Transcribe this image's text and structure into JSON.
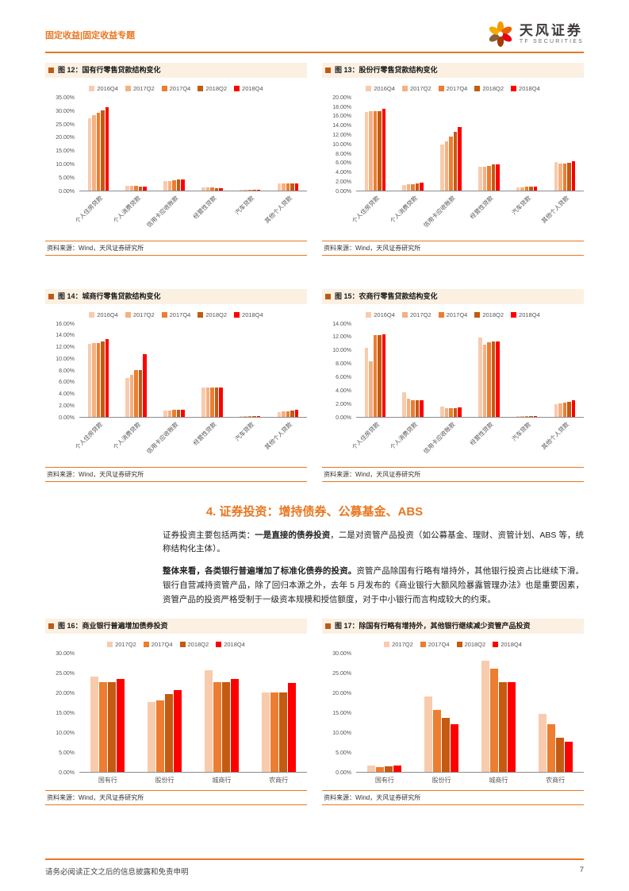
{
  "header": {
    "category": "固定收益|固定收益专题",
    "brand_name": "天风证券",
    "brand_sub": "TF SECURITIES"
  },
  "section": {
    "heading": "4. 证券投资：增持债券、公募基金、ABS",
    "paragraphs": [
      [
        {
          "t": "证券投资主要包括两类：",
          "b": false
        },
        {
          "t": "一是直接的债券投资",
          "b": true
        },
        {
          "t": "，二是对资管产品投资（如公募基金、理财、资管计划、ABS 等，统称结构化主体）。",
          "b": false
        }
      ],
      [
        {
          "t": "整体来看，各类银行普遍增加了标准化债券的投资。",
          "b": true
        },
        {
          "t": "资管产品除国有行略有增持外，其他银行投资占比继续下滑。银行自营减持资管产品，除了回归本源之外，去年 5 月发布的《商业银行大额风险暴露管理办法》也是重要因素，资管产品的投资严格受制于一级资本规模和授信额度，对于中小银行而言构成较大的约束。",
          "b": false
        }
      ]
    ]
  },
  "footer": {
    "disclaimer": "请务必阅读正文之后的信息披露和免责申明",
    "page_number": "7"
  },
  "colors": {
    "accent": "#E87722",
    "series5": [
      "#F8CBAD",
      "#F4B183",
      "#ED7D31",
      "#C55A11",
      "#FF0000"
    ],
    "series4": [
      "#F8CBAD",
      "#ED7D31",
      "#C55A11",
      "#FF0000"
    ]
  },
  "chart_data": [
    {
      "type": "bar",
      "title": "图 12：国有行零售贷款结构变化",
      "source": "资料来源：Wind，天风证券研究所",
      "ylim": [
        0,
        35
      ],
      "ystep": 5,
      "categories": [
        "个人住房贷款",
        "个人消费贷款",
        "信用卡应收账款",
        "经营性贷款",
        "汽车贷款",
        "其他个人贷款"
      ],
      "series": [
        {
          "name": "2016Q4",
          "values": [
            27.0,
            1.6,
            3.4,
            1.2,
            0.1,
            2.6
          ]
        },
        {
          "name": "2017Q2",
          "values": [
            28.0,
            1.6,
            3.6,
            1.1,
            0.1,
            2.6
          ]
        },
        {
          "name": "2017Q4",
          "values": [
            29.0,
            1.6,
            3.8,
            1.0,
            0.1,
            2.5
          ]
        },
        {
          "name": "2018Q2",
          "values": [
            30.0,
            1.5,
            4.0,
            0.9,
            0.1,
            2.5
          ]
        },
        {
          "name": "2018Q4",
          "values": [
            31.0,
            1.4,
            4.1,
            0.9,
            0.1,
            2.5
          ]
        }
      ]
    },
    {
      "type": "bar",
      "title": "图 13：股份行零售贷款结构变化",
      "source": "资料来源：Wind，天风证券研究所",
      "ylim": [
        0,
        20
      ],
      "ystep": 2,
      "categories": [
        "个人住房贷款",
        "个人消费贷款",
        "信用卡应收账款",
        "经营性贷款",
        "汽车贷款",
        "其他个人贷款"
      ],
      "series": [
        {
          "name": "2016Q4",
          "values": [
            16.8,
            1.2,
            9.8,
            5.0,
            0.7,
            6.0
          ]
        },
        {
          "name": "2017Q2",
          "values": [
            17.0,
            1.3,
            10.5,
            5.0,
            0.7,
            5.8
          ]
        },
        {
          "name": "2017Q4",
          "values": [
            17.0,
            1.4,
            11.5,
            5.2,
            0.8,
            5.8
          ]
        },
        {
          "name": "2018Q2",
          "values": [
            17.0,
            1.5,
            12.5,
            5.5,
            0.8,
            5.9
          ]
        },
        {
          "name": "2018Q4",
          "values": [
            17.5,
            1.6,
            13.5,
            5.6,
            0.8,
            6.3
          ]
        }
      ]
    },
    {
      "type": "bar",
      "title": "图 14：城商行零售贷款结构变化",
      "source": "资料来源：Wind，天风证券研究所",
      "ylim": [
        0,
        16
      ],
      "ystep": 2,
      "categories": [
        "个人住房贷款",
        "个人消费贷款",
        "信用卡应收账款",
        "经营性贷款",
        "汽车贷款",
        "其他个人贷款"
      ],
      "series": [
        {
          "name": "2016Q4",
          "values": [
            12.4,
            6.6,
            1.0,
            5.0,
            0.1,
            0.8
          ]
        },
        {
          "name": "2017Q2",
          "values": [
            12.5,
            7.1,
            1.0,
            5.0,
            0.1,
            0.9
          ]
        },
        {
          "name": "2017Q4",
          "values": [
            12.6,
            7.9,
            1.1,
            5.0,
            0.1,
            0.9
          ]
        },
        {
          "name": "2018Q2",
          "values": [
            12.8,
            8.0,
            1.1,
            5.0,
            0.1,
            1.0
          ]
        },
        {
          "name": "2018Q4",
          "values": [
            13.3,
            10.7,
            1.2,
            5.0,
            0.1,
            1.2
          ]
        }
      ]
    },
    {
      "type": "bar",
      "title": "图 15：农商行零售贷款结构变化",
      "source": "资料来源：Wind，天风证券研究所",
      "ylim": [
        0,
        14
      ],
      "ystep": 2,
      "categories": [
        "个人住房贷款",
        "个人消费贷款",
        "信用卡应收账款",
        "经营性贷款",
        "汽车贷款",
        "其他个人贷款"
      ],
      "series": [
        {
          "name": "2016Q4",
          "values": [
            10.3,
            3.6,
            1.5,
            11.8,
            0.1,
            1.8
          ]
        },
        {
          "name": "2017Q2",
          "values": [
            8.2,
            2.7,
            1.3,
            10.8,
            0.1,
            2.0
          ]
        },
        {
          "name": "2017Q4",
          "values": [
            12.2,
            2.4,
            1.3,
            11.1,
            0.1,
            2.1
          ]
        },
        {
          "name": "2018Q2",
          "values": [
            12.2,
            2.4,
            1.3,
            11.2,
            0.1,
            2.2
          ]
        },
        {
          "name": "2018Q4",
          "values": [
            12.3,
            2.5,
            1.4,
            11.2,
            0.1,
            2.4
          ]
        }
      ]
    },
    {
      "type": "bar",
      "title": "图 16：商业银行普遍增加债券投资",
      "source": "资料来源：Wind，天风证券研究所",
      "ylim": [
        0,
        30
      ],
      "ystep": 5,
      "categories": [
        "国有行",
        "股份行",
        "城商行",
        "农商行"
      ],
      "series": [
        {
          "name": "2017Q2",
          "values": [
            24.0,
            17.5,
            25.5,
            20.0
          ]
        },
        {
          "name": "2017Q4",
          "values": [
            22.5,
            18.0,
            22.5,
            20.0
          ]
        },
        {
          "name": "2018Q2",
          "values": [
            22.5,
            19.5,
            22.5,
            20.0
          ]
        },
        {
          "name": "2018Q4",
          "values": [
            23.3,
            20.5,
            23.3,
            22.3
          ]
        }
      ]
    },
    {
      "type": "bar",
      "title": "图 17：除国有行略有增持外，其他银行继续减少资管产品投资",
      "source": "资料来源：Wind，天风证券研究所",
      "ylim": [
        0,
        30
      ],
      "ystep": 5,
      "categories": [
        "国有行",
        "股份行",
        "城商行",
        "农商行"
      ],
      "series": [
        {
          "name": "2017Q2",
          "values": [
            1.5,
            19.0,
            28.0,
            14.5
          ]
        },
        {
          "name": "2017Q4",
          "values": [
            1.2,
            15.5,
            26.0,
            12.0
          ]
        },
        {
          "name": "2018Q2",
          "values": [
            1.3,
            13.5,
            22.5,
            8.5
          ]
        },
        {
          "name": "2018Q4",
          "values": [
            1.5,
            12.0,
            22.5,
            7.5
          ]
        }
      ]
    }
  ]
}
